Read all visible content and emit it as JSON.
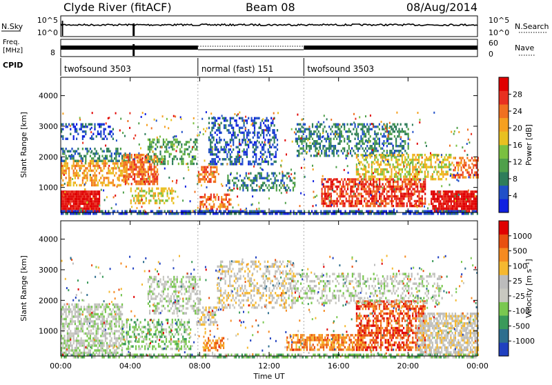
{
  "header": {
    "title": "Clyde River (fitACF)",
    "beam": "Beam 08",
    "date": "08/Aug/2014"
  },
  "nsky_panel": {
    "left_label": "N.Sky",
    "left_ticks": [
      "10^5",
      "10^0"
    ],
    "right_ticks": [
      "10^5",
      "10^0"
    ],
    "right_label": "N.Search"
  },
  "freq_panel": {
    "left_label_line1": "Freq.",
    "left_label_line2": "[MHz]",
    "left_ticks": [
      "",
      "8"
    ],
    "right_ticks": [
      "60",
      "0"
    ],
    "right_label": "Nave"
  },
  "cpid": {
    "label": "CPID",
    "segments": [
      {
        "name": "twofsound 3503",
        "start_h": 0,
        "end_h": 7.9
      },
      {
        "name": "normal (fast) 151",
        "start_h": 7.9,
        "end_h": 14.0
      },
      {
        "name": "twofsound 3503",
        "start_h": 14.0,
        "end_h": 24
      }
    ]
  },
  "colors": {
    "power": [
      "#1020e0",
      "#2050c8",
      "#2e7d5a",
      "#4fa04a",
      "#7ac040",
      "#e8c020",
      "#f5a020",
      "#f07020",
      "#e83020",
      "#e00000"
    ],
    "velocity": [
      "#2040c0",
      "#2e6e8e",
      "#3a9a5a",
      "#7ac850",
      "#c8c8c0",
      "#bcbcbc",
      "#f5b830",
      "#f58a20",
      "#e85010",
      "#e00000"
    ]
  },
  "chart_data": [
    {
      "type": "heatmap",
      "name": "power",
      "xlabel": "",
      "ylabel": "Slant Range [km]",
      "colorbar_label": "Power [dB]",
      "colorbar_ticks": [
        "28",
        "24",
        "20",
        "16",
        "12",
        "8",
        "4"
      ],
      "xlim_hours": [
        0,
        24
      ],
      "ylim_km": [
        180,
        4600
      ],
      "y_ticks": [
        "1000",
        "2000",
        "3000",
        "4000"
      ],
      "y_tick_values": [
        1000,
        2000,
        3000,
        4000
      ],
      "x_ticks": [
        "00:00",
        "04:00",
        "08:00",
        "12:00",
        "16:00",
        "20:00",
        "00:00"
      ],
      "regions": [
        {
          "t0": 0.0,
          "t1": 2.2,
          "r0": 200,
          "r1": 900,
          "level": 9,
          "density": 0.95
        },
        {
          "t0": 0.0,
          "t1": 3.8,
          "r0": 1100,
          "r1": 1900,
          "level": 6,
          "density": 0.55
        },
        {
          "t0": 0.0,
          "t1": 4.0,
          "r0": 1900,
          "r1": 2300,
          "level": 2,
          "density": 0.5
        },
        {
          "t0": 0.0,
          "t1": 3.0,
          "r0": 2600,
          "r1": 3100,
          "level": 1,
          "density": 0.35
        },
        {
          "t0": 3.6,
          "t1": 5.6,
          "r0": 1100,
          "r1": 2100,
          "level": 7,
          "density": 0.7
        },
        {
          "t0": 4.0,
          "t1": 6.5,
          "r0": 500,
          "r1": 1000,
          "level": 5,
          "density": 0.45
        },
        {
          "t0": 5.0,
          "t1": 7.8,
          "r0": 1800,
          "r1": 2600,
          "level": 3,
          "density": 0.45
        },
        {
          "t0": 7.9,
          "t1": 9.0,
          "r0": 1200,
          "r1": 1700,
          "level": 7,
          "density": 0.6
        },
        {
          "t0": 8.0,
          "t1": 9.8,
          "r0": 300,
          "r1": 800,
          "level": 7,
          "density": 0.45
        },
        {
          "t0": 8.5,
          "t1": 12.5,
          "r0": 1800,
          "r1": 3300,
          "level": 1,
          "density": 0.45
        },
        {
          "t0": 9.5,
          "t1": 13.5,
          "r0": 900,
          "r1": 1500,
          "level": 2,
          "density": 0.4
        },
        {
          "t0": 13.5,
          "t1": 20.0,
          "r0": 2000,
          "r1": 3100,
          "level": 2,
          "density": 0.45
        },
        {
          "t0": 15.0,
          "t1": 21.0,
          "r0": 400,
          "r1": 1300,
          "level": 8,
          "density": 0.65
        },
        {
          "t0": 17.0,
          "t1": 22.5,
          "r0": 1300,
          "r1": 2100,
          "level": 5,
          "density": 0.55
        },
        {
          "t0": 21.3,
          "t1": 24.0,
          "r0": 250,
          "r1": 900,
          "level": 9,
          "density": 0.9
        },
        {
          "t0": 22.5,
          "t1": 24.0,
          "r0": 1300,
          "r1": 2000,
          "level": 7,
          "density": 0.5
        },
        {
          "t0": 0.0,
          "t1": 24.0,
          "r0": 180,
          "r1": 260,
          "level": 1,
          "density": 0.7
        }
      ]
    },
    {
      "type": "heatmap",
      "name": "velocity",
      "xlabel": "Time UT",
      "ylabel": "Slant Range [km]",
      "colorbar_label": "Velocity [m s⁻¹]",
      "colorbar_ticks": [
        "1000",
        "500",
        "100",
        "25",
        "-25",
        "-100",
        "-500",
        "-1000"
      ],
      "xlim_hours": [
        0,
        24
      ],
      "ylim_km": [
        180,
        4600
      ],
      "y_ticks": [
        "1000",
        "2000",
        "3000",
        "4000"
      ],
      "y_tick_values": [
        1000,
        2000,
        3000,
        4000
      ],
      "x_ticks": [
        "00:00",
        "04:00",
        "08:00",
        "12:00",
        "16:00",
        "20:00",
        "00:00"
      ],
      "regions": [
        {
          "t0": 0.0,
          "t1": 3.5,
          "r0": 200,
          "r1": 1900,
          "level": 4,
          "density": 0.6
        },
        {
          "t0": 3.5,
          "t1": 7.5,
          "r0": 400,
          "r1": 1400,
          "level": 3,
          "density": 0.45
        },
        {
          "t0": 5.0,
          "t1": 8.0,
          "r0": 1600,
          "r1": 2800,
          "level": 4,
          "density": 0.5
        },
        {
          "t0": 7.8,
          "t1": 9.0,
          "r0": 1200,
          "r1": 1800,
          "level": 5,
          "density": 0.55
        },
        {
          "t0": 8.2,
          "t1": 9.4,
          "r0": 400,
          "r1": 800,
          "level": 7,
          "density": 0.6
        },
        {
          "t0": 9.0,
          "t1": 13.5,
          "r0": 1800,
          "r1": 3300,
          "level": 5,
          "density": 0.35
        },
        {
          "t0": 13.0,
          "t1": 17.5,
          "r0": 350,
          "r1": 900,
          "level": 7,
          "density": 0.6
        },
        {
          "t0": 17.0,
          "t1": 21.0,
          "r0": 400,
          "r1": 2000,
          "level": 8,
          "density": 0.6
        },
        {
          "t0": 20.5,
          "t1": 24.0,
          "r0": 250,
          "r1": 1600,
          "level": 5,
          "density": 0.7
        },
        {
          "t0": 13.0,
          "t1": 22.0,
          "r0": 1900,
          "r1": 2900,
          "level": 4,
          "density": 0.35
        },
        {
          "t0": 0.0,
          "t1": 24.0,
          "r0": 180,
          "r1": 260,
          "level": 3,
          "density": 0.6
        }
      ]
    }
  ]
}
